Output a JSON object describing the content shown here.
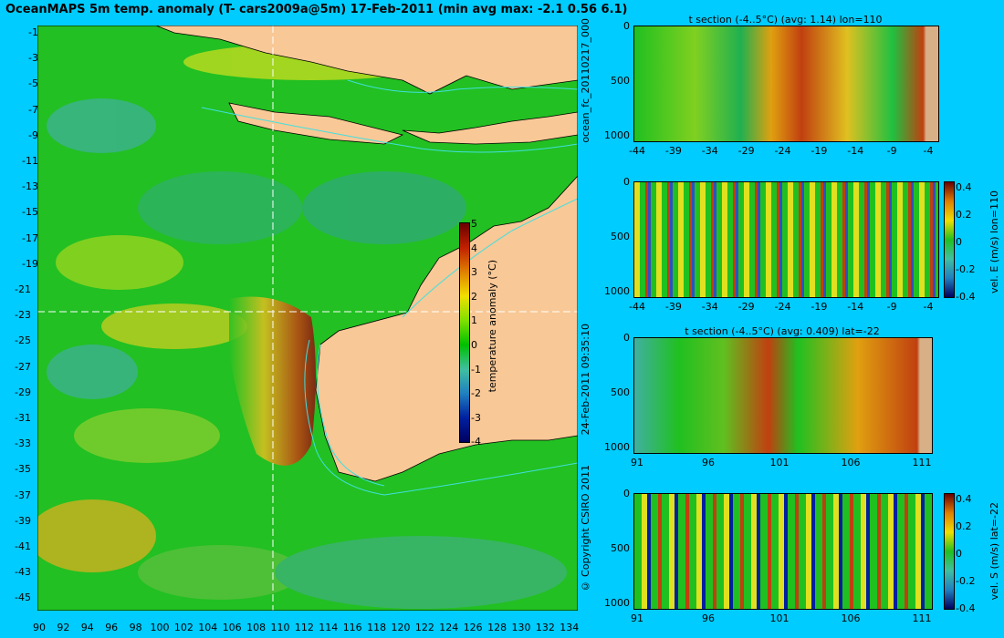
{
  "main_map": {
    "title": "OceanMAPS 5m temp. anomaly (T- cars2009a@5m) 17-Feb-2011 (min avg max: -2.1 0.56 6.1)",
    "lat_ticks": [
      "-1",
      "-3",
      "-5",
      "-7",
      "-9",
      "-11",
      "-13",
      "-15",
      "-17",
      "-19",
      "-21",
      "-23",
      "-25",
      "-27",
      "-29",
      "-31",
      "-33",
      "-35",
      "-37",
      "-39",
      "-41",
      "-43",
      "-45"
    ],
    "lon_ticks": [
      "90",
      "92",
      "94",
      "96",
      "98",
      "100",
      "102",
      "104",
      "106",
      "108",
      "110",
      "112",
      "114",
      "116",
      "118",
      "120",
      "122",
      "124",
      "126",
      "128",
      "130",
      "132",
      "134"
    ],
    "colorbar": {
      "label": "temperature anomaly (°C)",
      "ticks": [
        "5",
        "4",
        "3",
        "2",
        "1",
        "0",
        "-1",
        "-2",
        "-3",
        "-4"
      ]
    },
    "section_lon_label": "lon=110",
    "section_lat_label": "lat=-22",
    "colors": {
      "ocean": "#22c022",
      "land": "#f8c896",
      "contour": "#40e0e0",
      "background": "#00ccff"
    }
  },
  "side_labels": {
    "forecast_id": "ocean_fc_20110217_000",
    "timestamp": "24-Feb-2011 09:35:10",
    "copyright": "© Copyright CSIRO 2011"
  },
  "panels": [
    {
      "title": "t section (-4..5°C) (avg: 1.14) lon=110",
      "y_ticks": [
        "0",
        "500",
        "1000"
      ],
      "x_ticks": [
        "-44",
        "-39",
        "-34",
        "-29",
        "-24",
        "-19",
        "-14",
        "-9",
        "-4"
      ]
    },
    {
      "title": "",
      "y_ticks": [
        "0",
        "500",
        "1000"
      ],
      "x_ticks": [
        "-44",
        "-39",
        "-34",
        "-29",
        "-24",
        "-19",
        "-14",
        "-9",
        "-4"
      ],
      "colorbar": {
        "label": "vel. E (m/s) lon=110",
        "ticks": [
          "0.4",
          "0.2",
          "0",
          "-0.2",
          "-0.4"
        ]
      }
    },
    {
      "title": "t section (-4..5°C) (avg: 0.409) lat=-22",
      "y_ticks": [
        "0",
        "500",
        "1000"
      ],
      "x_ticks": [
        "91",
        "96",
        "101",
        "106",
        "111"
      ]
    },
    {
      "title": "",
      "y_ticks": [
        "0",
        "500",
        "1000"
      ],
      "x_ticks": [
        "91",
        "96",
        "101",
        "106",
        "111"
      ],
      "colorbar": {
        "label": "vel. S (m/s) lat=-22",
        "ticks": [
          "0.4",
          "0.2",
          "0",
          "-0.2",
          "-0.4"
        ]
      }
    }
  ]
}
